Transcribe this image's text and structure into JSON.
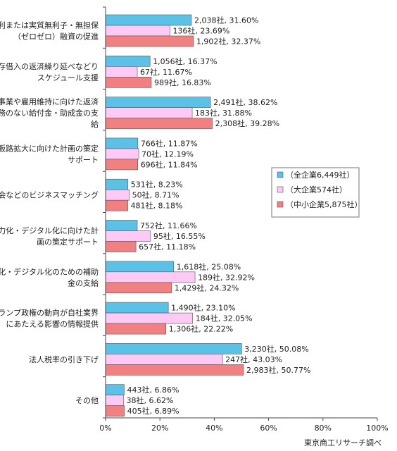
{
  "chart_data": {
    "type": "bar",
    "orientation": "horizontal",
    "categories": [
      [
        "低利または実質無利子・無担保",
        "（ゼロゼロ）融資の促進"
      ],
      [
        "既存借入の返済繰り延べなどり",
        "スケジュール支援"
      ],
      [
        "事業や雇用維持に向けた返済",
        "義務のない給付金・助成金の支",
        "給"
      ],
      [
        "販路拡大に向けた計画の策定",
        "サポート"
      ],
      [
        "商談会などのビジネスマッチング"
      ],
      [
        "省力化・デジタル化に向けた計",
        "画の策定サポート"
      ],
      [
        "省力化・デジタル化のための補助",
        "金の支給"
      ],
      [
        "トランプ政権の動向が自社業界",
        "にあたえる影響の情報提供"
      ],
      [
        "法人税率の引き下げ"
      ],
      [
        "その他"
      ]
    ],
    "series": [
      {
        "name": "（全企業6,449社）",
        "color": "#5bc2e7",
        "values": [
          31.6,
          16.37,
          38.62,
          11.87,
          8.23,
          11.66,
          25.08,
          23.1,
          50.08,
          6.86
        ],
        "labels": [
          "2,038社, 31.60%",
          "1,056社, 16.37%",
          "2,491社, 38.62%",
          "766社, 11.87%",
          "531社, 8.23%",
          "752社, 11.66%",
          "1,618社, 25.08%",
          "1,490社, 23.10%",
          "3,230社, 50.08%",
          "443社, 6.86%"
        ]
      },
      {
        "name": "（大企業574社）",
        "color": "#fdc9f5",
        "values": [
          23.69,
          11.67,
          31.88,
          12.19,
          8.71,
          16.55,
          32.92,
          32.05,
          43.03,
          6.62
        ],
        "labels": [
          "136社, 23.69%",
          "67社, 11.67%",
          "183社, 31.88%",
          "70社, 12.19%",
          "50社, 8.71%",
          "95社, 16.55%",
          "189社, 32.92%",
          "184社, 32.05%",
          "247社, 43.03%",
          "38社, 6.62%"
        ]
      },
      {
        "name": "（中小企業5,875社）",
        "color": "#f28080",
        "values": [
          32.37,
          16.83,
          39.28,
          11.84,
          8.18,
          11.18,
          24.32,
          22.22,
          50.77,
          6.89
        ],
        "labels": [
          "1,902社, 32.37%",
          "989社, 16.83%",
          "2,308社, 39.28%",
          "696社, 11.84%",
          "481社, 8.18%",
          "657社, 11.18%",
          "1,429社, 24.32%",
          "1,306社, 22.22%",
          "2,983社, 50.77%",
          "405社, 6.89%"
        ]
      }
    ],
    "xlim": [
      0,
      100
    ],
    "xticks": [
      0,
      20,
      40,
      60,
      80,
      100
    ],
    "xtick_labels": [
      "0%",
      "20%",
      "40%",
      "60%",
      "80%",
      "100%"
    ],
    "grid": false,
    "legend": "right"
  },
  "source_note": "東京商工リサーチ調べ"
}
